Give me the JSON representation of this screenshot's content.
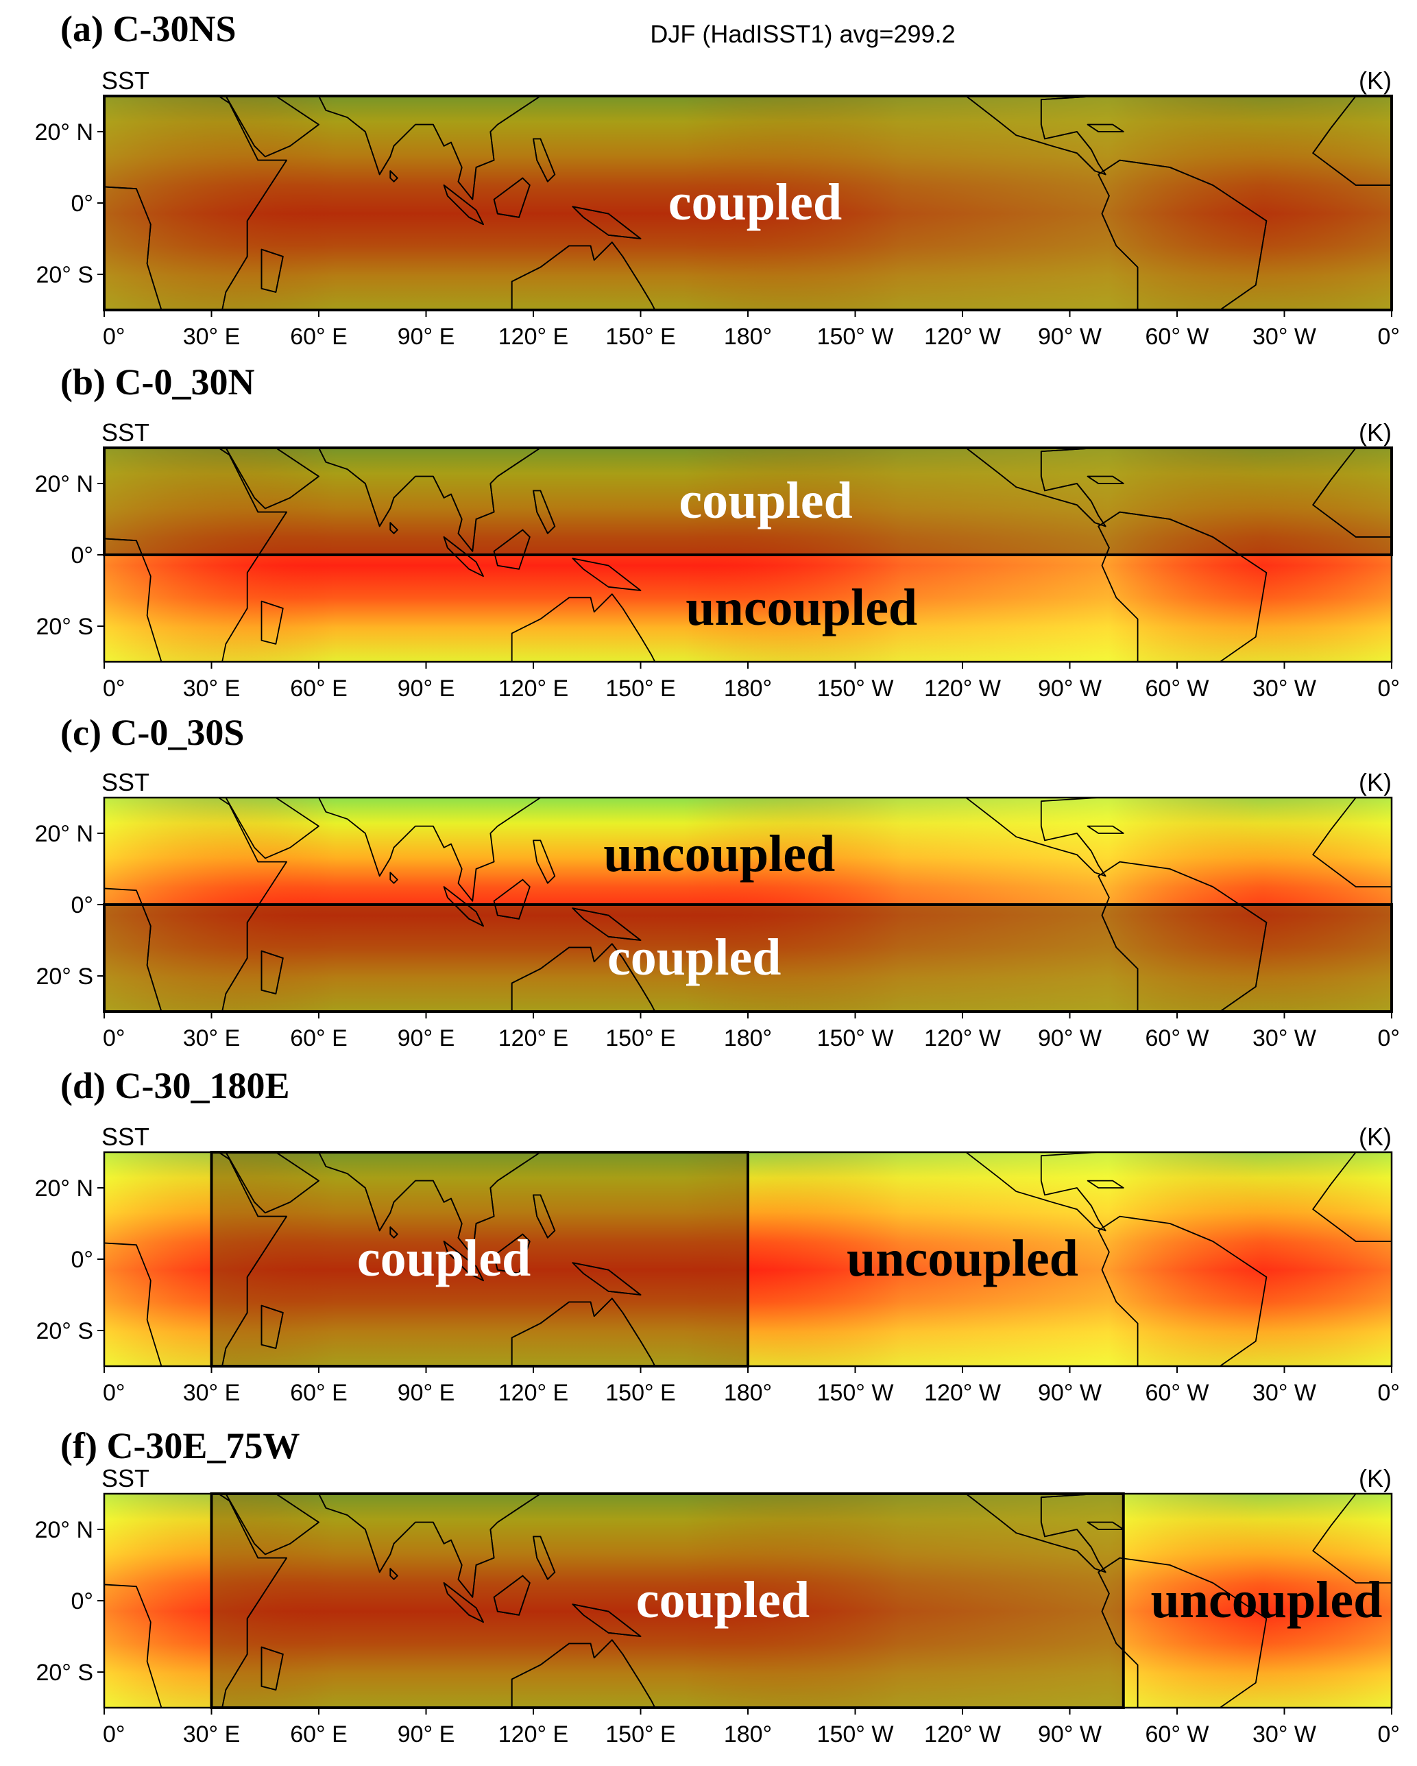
{
  "figure": {
    "colors": {
      "land_coupled": "#999999",
      "coupled_text": "#ffffff",
      "uncoupled_text": "#000000",
      "sst_scale": [
        "#2020c0",
        "#20a0ff",
        "#40ffff",
        "#20c020",
        "#a0ff20",
        "#ffff20",
        "#ffc020",
        "#ff7020",
        "#ff2010",
        "#a00010"
      ]
    },
    "x_ticks": [
      "0°",
      "30° E",
      "60° E",
      "90° E",
      "120° E",
      "150° E",
      "180°",
      "150° W",
      "120° W",
      "90° W",
      "60° W",
      "30° W",
      "0°"
    ],
    "y_ticks": [
      "20° N",
      "0°",
      "20° S"
    ],
    "panels": [
      {
        "title": "(a) C-30NS",
        "variable": "SST",
        "center": "DJF (HadISST1) avg=299.2",
        "units": "(K)",
        "coupled": {
          "lon_from": 0,
          "lon_to": 360,
          "lat_from": -30,
          "lat_to": 30
        },
        "labels": [
          {
            "text": "coupled",
            "kind": "coupled",
            "lon": 182,
            "lat": 0
          }
        ]
      },
      {
        "title": "(b) C-0_30N",
        "variable": "SST",
        "center": "",
        "units": "(K)",
        "coupled": {
          "lon_from": 0,
          "lon_to": 360,
          "lat_from": 0,
          "lat_to": 30
        },
        "labels": [
          {
            "text": "coupled",
            "kind": "coupled",
            "lon": 185,
            "lat": 15
          },
          {
            "text": "uncoupled",
            "kind": "uncoupled",
            "lon": 195,
            "lat": -15
          }
        ]
      },
      {
        "title": "(c) C-0_30S",
        "variable": "SST",
        "center": "",
        "units": "(K)",
        "coupled": {
          "lon_from": 0,
          "lon_to": 360,
          "lat_from": -30,
          "lat_to": 0
        },
        "labels": [
          {
            "text": "uncoupled",
            "kind": "uncoupled",
            "lon": 172,
            "lat": 14
          },
          {
            "text": "coupled",
            "kind": "coupled",
            "lon": 165,
            "lat": -15
          }
        ]
      },
      {
        "title": "(d) C-30_180E",
        "variable": "SST",
        "center": "",
        "units": "(K)",
        "coupled": {
          "lon_from": 30,
          "lon_to": 180,
          "lat_from": -30,
          "lat_to": 30
        },
        "labels": [
          {
            "text": "coupled",
            "kind": "coupled",
            "lon": 95,
            "lat": 0
          },
          {
            "text": "uncoupled",
            "kind": "uncoupled",
            "lon": 240,
            "lat": 0
          }
        ]
      },
      {
        "title": "(f) C-30E_75W",
        "variable": "SST",
        "center": "",
        "units": "(K)",
        "coupled": {
          "lon_from": 30,
          "lon_to": 285,
          "lat_from": -30,
          "lat_to": 30
        },
        "labels": [
          {
            "text": "coupled",
            "kind": "coupled",
            "lon": 173,
            "lat": 0
          },
          {
            "text": "uncoupled",
            "kind": "uncoupled",
            "lon": 325,
            "lat": 0
          }
        ]
      }
    ]
  }
}
